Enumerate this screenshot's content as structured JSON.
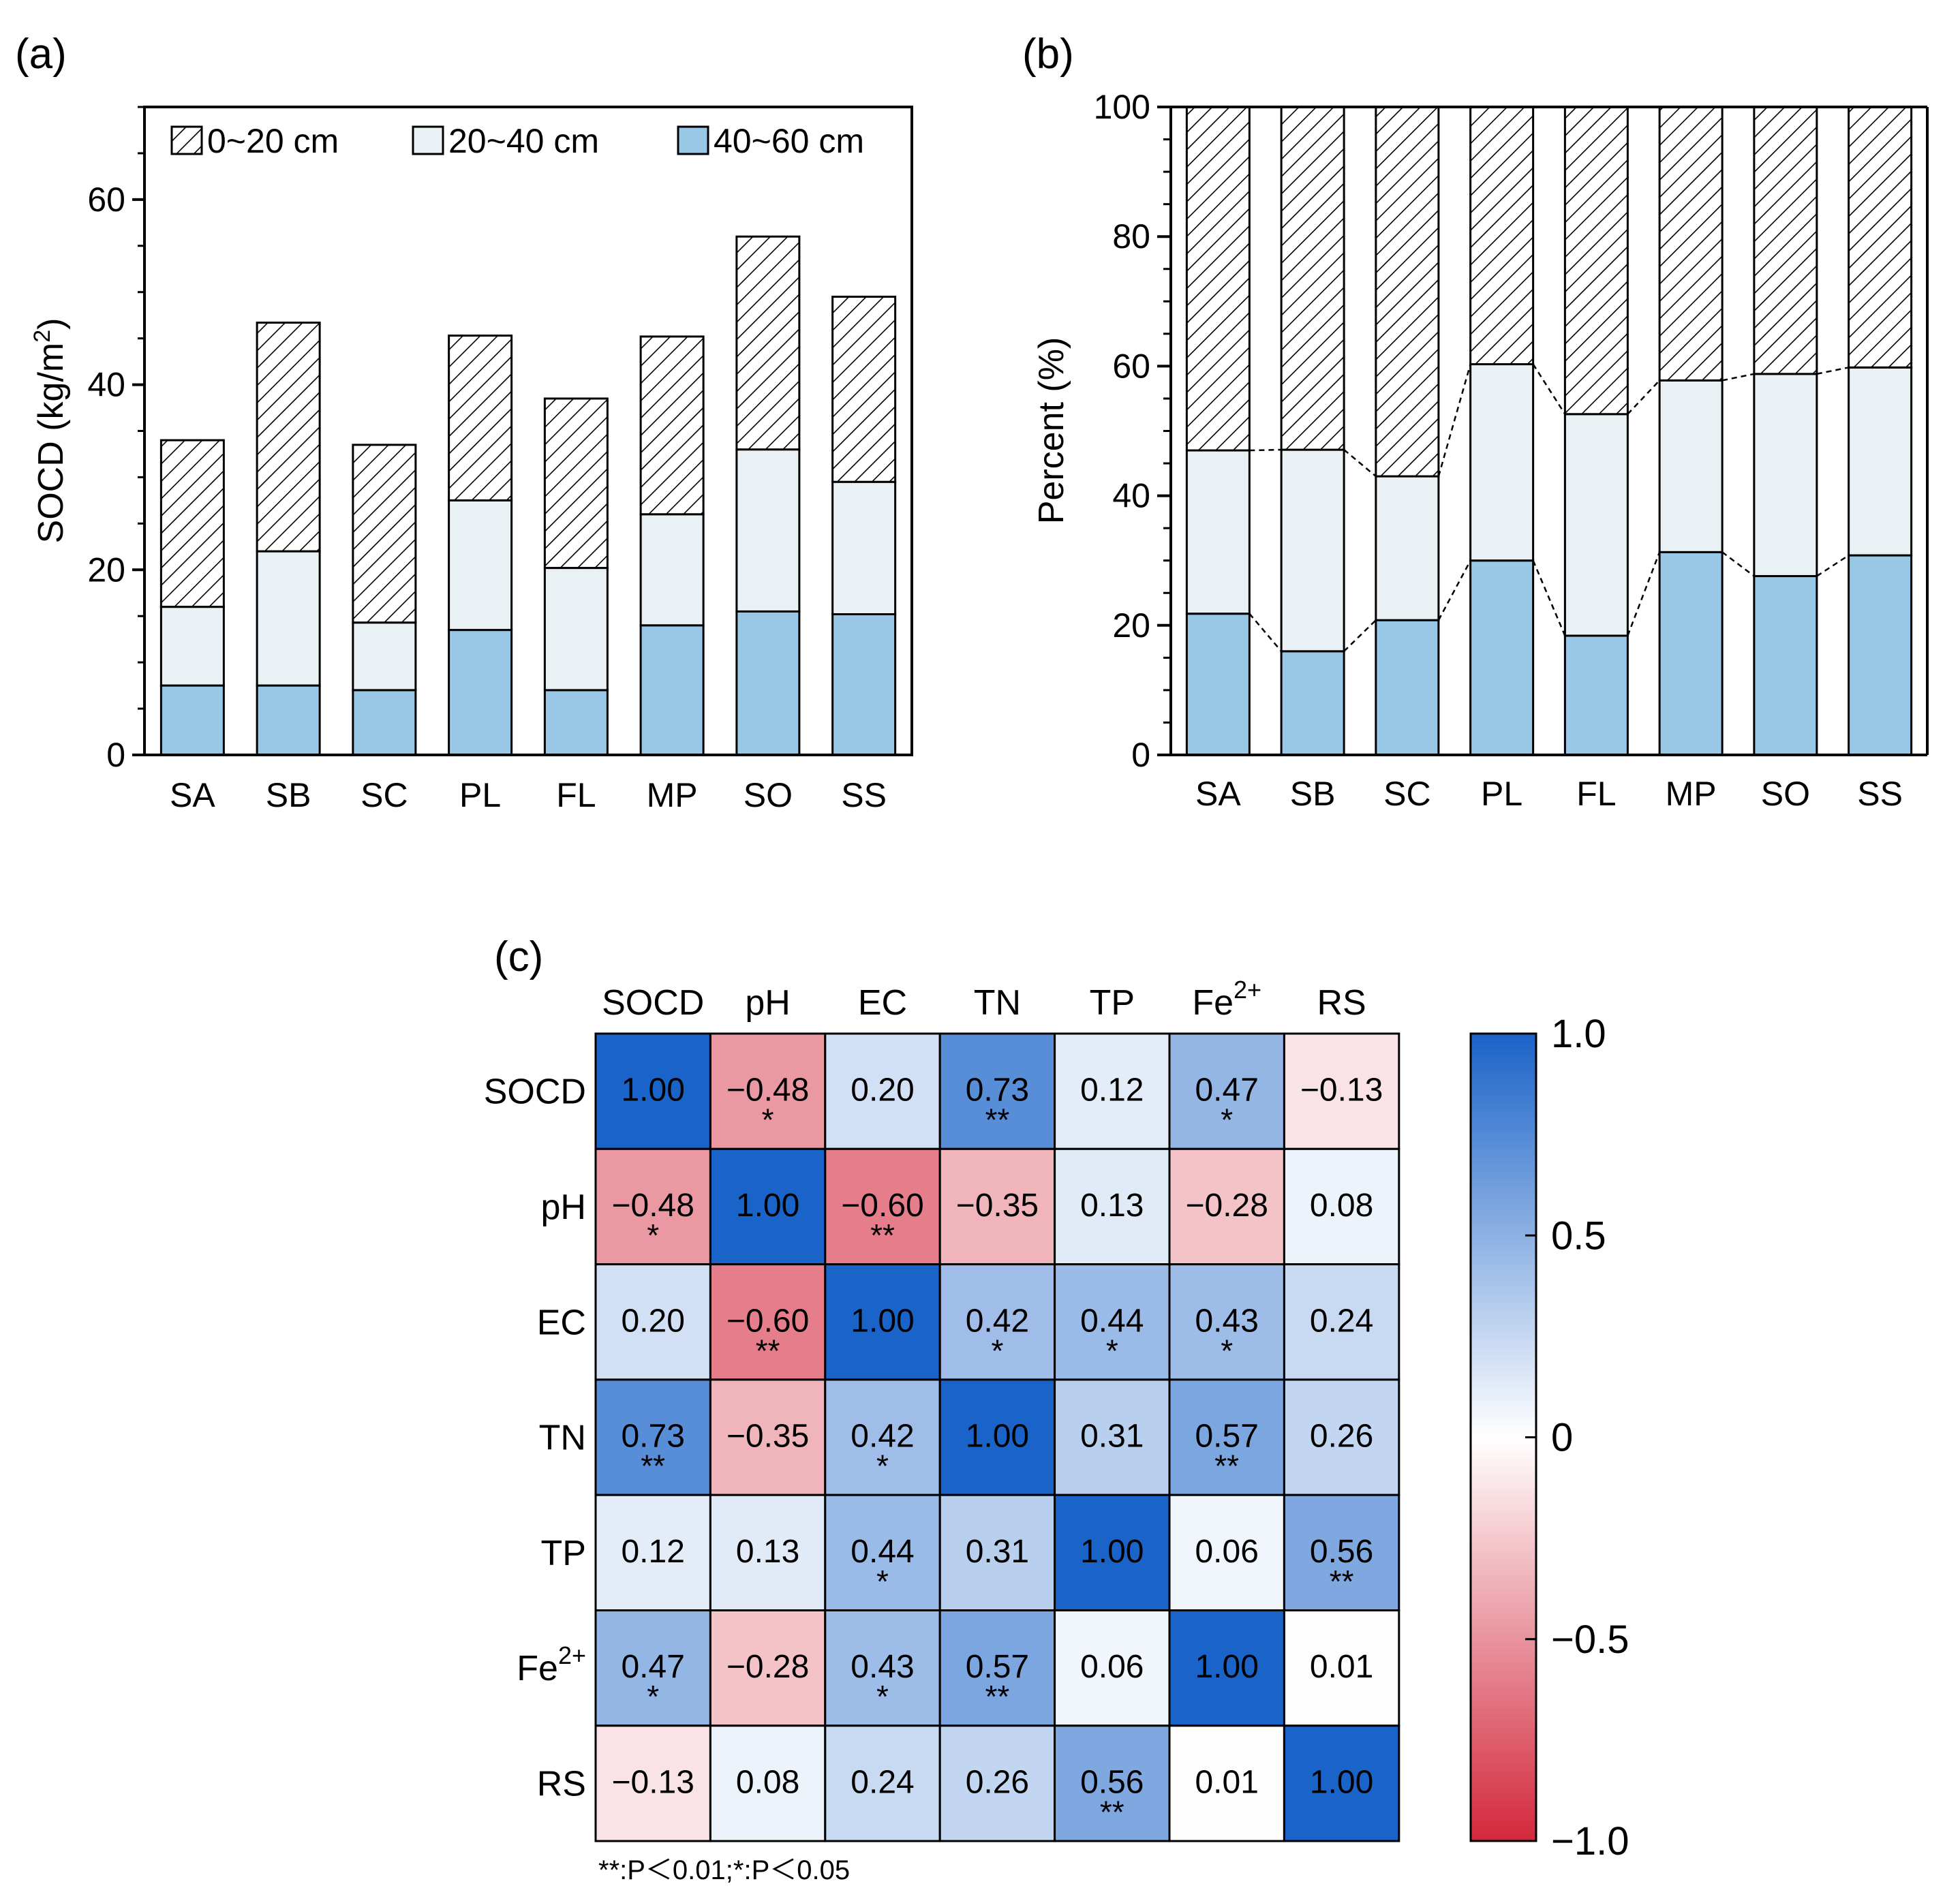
{
  "chart_data": [
    {
      "panel": "(a)",
      "type": "bar",
      "stacked": true,
      "categories": [
        "SA",
        "SB",
        "SC",
        "PL",
        "FL",
        "MP",
        "SO",
        "SS"
      ],
      "ylabel": "SOCD (kg/m²)",
      "ylabel_main": "SOCD (kg/m",
      "ylabel_sup": "2",
      "ylabel_end": ")",
      "ylim": [
        0,
        70
      ],
      "yticks": [
        "0",
        "20",
        "40",
        "60"
      ],
      "legend_position": "top",
      "series": [
        {
          "name": "40~60 cm",
          "pattern": "solid",
          "color": "#98c8e6",
          "values": [
            7.5,
            7.5,
            7.0,
            13.5,
            7.0,
            14.0,
            15.5,
            15.2
          ]
        },
        {
          "name": "20~40 cm",
          "pattern": "solid",
          "color": "#e9f1f5",
          "values": [
            8.5,
            14.5,
            7.3,
            14.0,
            13.2,
            12.0,
            17.5,
            14.3
          ]
        },
        {
          "name": "0~20 cm",
          "pattern": "hatch",
          "color": "#ffffff",
          "values": [
            18.0,
            24.7,
            19.2,
            17.8,
            18.3,
            19.2,
            23.0,
            20.0
          ]
        }
      ],
      "legend": [
        "0~20 cm",
        "20~40 cm",
        "40~60 cm"
      ]
    },
    {
      "panel": "(b)",
      "type": "bar",
      "stacked": true,
      "categories": [
        "SA",
        "SB",
        "SC",
        "PL",
        "FL",
        "MP",
        "SO",
        "SS"
      ],
      "ylabel": "Percent (%)",
      "ylim": [
        0,
        100
      ],
      "yticks": [
        "0",
        "20",
        "40",
        "60",
        "80",
        "100"
      ],
      "series": [
        {
          "name": "40~60 cm",
          "color": "#98c8e6",
          "values": [
            21.8,
            16.0,
            20.8,
            30.0,
            18.4,
            31.3,
            27.6,
            30.8
          ]
        },
        {
          "name": "20~40 cm",
          "color": "#e9f1f5",
          "values": [
            25.2,
            31.1,
            22.2,
            30.3,
            34.2,
            26.5,
            31.2,
            29.0
          ]
        },
        {
          "name": "0~20 cm",
          "color": "#ffffff",
          "values": [
            53.0,
            52.9,
            57.0,
            39.7,
            47.4,
            42.2,
            41.2,
            40.2
          ]
        }
      ],
      "connectors": "dashed"
    },
    {
      "panel": "(c)",
      "type": "heatmap",
      "variables": [
        "SOCD",
        "pH",
        "EC",
        "TN",
        "TP",
        "Fe2+",
        "RS"
      ],
      "labels": [
        {
          "main": "SOCD",
          "sup": ""
        },
        {
          "main": "pH",
          "sup": ""
        },
        {
          "main": "EC",
          "sup": ""
        },
        {
          "main": "TN",
          "sup": ""
        },
        {
          "main": "TP",
          "sup": ""
        },
        {
          "main": "Fe",
          "sup": "2+"
        },
        {
          "main": "RS",
          "sup": ""
        }
      ],
      "values": [
        [
          1.0,
          -0.48,
          0.2,
          0.73,
          0.12,
          0.47,
          -0.13
        ],
        [
          -0.48,
          1.0,
          -0.6,
          -0.35,
          0.13,
          -0.28,
          0.08
        ],
        [
          0.2,
          -0.6,
          1.0,
          0.42,
          0.44,
          0.43,
          0.24
        ],
        [
          0.73,
          -0.35,
          0.42,
          1.0,
          0.31,
          0.57,
          0.26
        ],
        [
          0.12,
          0.13,
          0.44,
          0.31,
          1.0,
          0.06,
          0.56
        ],
        [
          0.47,
          -0.28,
          0.43,
          0.57,
          0.06,
          1.0,
          0.01
        ],
        [
          -0.13,
          0.08,
          0.24,
          0.26,
          0.56,
          0.01,
          1.0
        ]
      ],
      "value_labels": [
        [
          "1.00",
          "−0.48",
          "0.20",
          "0.73",
          "0.12",
          "0.47",
          "−0.13"
        ],
        [
          "−0.48",
          "1.00",
          "−0.60",
          "−0.35",
          "0.13",
          "−0.28",
          "0.08"
        ],
        [
          "0.20",
          "−0.60",
          "1.00",
          "0.42",
          "0.44",
          "0.43",
          "0.24"
        ],
        [
          "0.73",
          "−0.35",
          "0.42",
          "1.00",
          "0.31",
          "0.57",
          "0.26"
        ],
        [
          "0.12",
          "0.13",
          "0.44",
          "0.31",
          "1.00",
          "0.06",
          "0.56"
        ],
        [
          "0.47",
          "−0.28",
          "0.43",
          "0.57",
          "0.06",
          "1.00",
          "0.01"
        ],
        [
          "−0.13",
          "0.08",
          "0.24",
          "0.26",
          "0.56",
          "0.01",
          "1.00"
        ]
      ],
      "significance": [
        [
          "",
          "*",
          "",
          "**",
          "",
          "*",
          ""
        ],
        [
          "*",
          "",
          "**",
          "",
          "",
          "",
          ""
        ],
        [
          "",
          "**",
          "",
          "*",
          "*",
          "*",
          ""
        ],
        [
          "**",
          "",
          "*",
          "",
          "",
          "**",
          ""
        ],
        [
          "",
          "",
          "*",
          "",
          "",
          "",
          "**"
        ],
        [
          "*",
          "",
          "*",
          "**",
          "",
          "",
          ""
        ],
        [
          "",
          "",
          "",
          "",
          "**",
          "",
          ""
        ]
      ],
      "colorbar": {
        "range": [
          -1,
          1
        ],
        "ticks": [
          1.0,
          0.5,
          0,
          -0.5,
          -1.0
        ],
        "tick_labels": [
          "1.0",
          "0.5",
          "0",
          "−0.5",
          "−1.0"
        ]
      },
      "colors": {
        "positive": "#1a63c8",
        "neutral": "#ffffff",
        "negative": "#d3283c"
      },
      "footnote": "**:P＜0.01;*:P＜0.05"
    }
  ]
}
